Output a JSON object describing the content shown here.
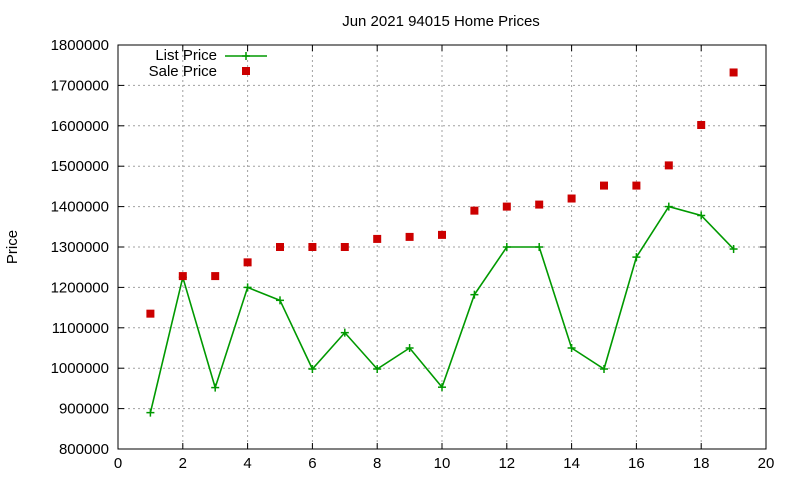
{
  "chart_data": {
    "type": "line",
    "title": "Jun 2021 94015 Home Prices",
    "xlabel": "",
    "ylabel": "Price",
    "xlim": [
      0,
      20
    ],
    "ylim": [
      800000,
      1800000
    ],
    "xticks": [
      0,
      2,
      4,
      6,
      8,
      10,
      12,
      14,
      16,
      18,
      20
    ],
    "yticks": [
      800000,
      900000,
      1000000,
      1100000,
      1200000,
      1300000,
      1400000,
      1500000,
      1600000,
      1700000,
      1800000
    ],
    "grid": true,
    "legend_position": "top-left",
    "series": [
      {
        "name": "List Price",
        "style": "line+plus",
        "color": "#009900",
        "x": [
          1,
          2,
          3,
          4,
          5,
          6,
          7,
          8,
          9,
          10,
          11,
          12,
          13,
          14,
          15,
          16,
          17,
          18,
          19
        ],
        "values": [
          890000,
          1225000,
          952000,
          1200000,
          1168000,
          998000,
          1088000,
          998000,
          1050000,
          953000,
          1182000,
          1300000,
          1300000,
          1050000,
          998000,
          1275000,
          1400000,
          1378000,
          1295000
        ]
      },
      {
        "name": "Sale Price",
        "style": "square",
        "color": "#cc0000",
        "x": [
          1,
          2,
          3,
          4,
          5,
          6,
          7,
          8,
          9,
          10,
          11,
          12,
          13,
          14,
          15,
          16,
          17,
          18,
          19
        ],
        "values": [
          1135000,
          1228000,
          1228000,
          1262000,
          1300000,
          1300000,
          1300000,
          1320000,
          1325000,
          1330000,
          1390000,
          1400000,
          1405000,
          1420000,
          1452000,
          1452000,
          1502000,
          1602000,
          1732000
        ]
      }
    ]
  }
}
